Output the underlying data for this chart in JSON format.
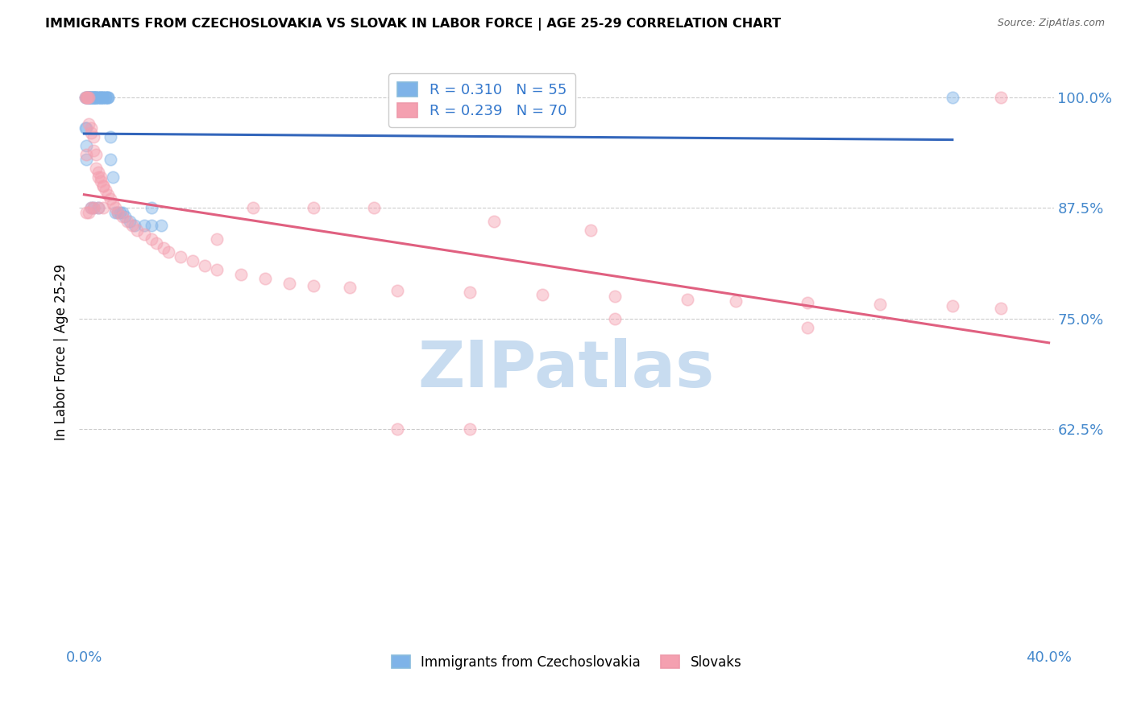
{
  "title": "IMMIGRANTS FROM CZECHOSLOVAKIA VS SLOVAK IN LABOR FORCE | AGE 25-29 CORRELATION CHART",
  "source": "Source: ZipAtlas.com",
  "ylabel": "In Labor Force | Age 25-29",
  "xlim": [
    -0.002,
    0.402
  ],
  "ylim": [
    0.38,
    1.045
  ],
  "xticks": [
    0.0,
    0.4
  ],
  "xticklabels": [
    "0.0%",
    "40.0%"
  ],
  "yticks": [
    0.625,
    0.75,
    0.875,
    1.0
  ],
  "yticklabels": [
    "62.5%",
    "75.0%",
    "87.5%",
    "100.0%"
  ],
  "legend_label1": "Immigrants from Czechoslovakia",
  "legend_label2": "Slovaks",
  "R1": 0.31,
  "N1": 55,
  "R2": 0.239,
  "N2": 70,
  "blue_color": "#7EB3E8",
  "pink_color": "#F4A0B0",
  "blue_line_color": "#3366BB",
  "pink_line_color": "#E06080",
  "watermark_color": "#C8DCF0",
  "background_color": "#FFFFFF",
  "blue_x": [
    0.0005,
    0.001,
    0.0012,
    0.0015,
    0.0018,
    0.002,
    0.002,
    0.0022,
    0.0025,
    0.003,
    0.003,
    0.0032,
    0.0035,
    0.004,
    0.004,
    0.0042,
    0.0045,
    0.005,
    0.005,
    0.005,
    0.006,
    0.006,
    0.0065,
    0.007,
    0.007,
    0.0075,
    0.008,
    0.008,
    0.009,
    0.009,
    0.0095,
    0.01,
    0.01,
    0.011,
    0.011,
    0.012,
    0.013,
    0.014,
    0.015,
    0.016,
    0.017,
    0.019,
    0.021,
    0.025,
    0.028,
    0.032,
    0.001,
    0.001,
    0.0008,
    0.0006,
    0.003,
    0.004,
    0.006,
    0.028,
    0.36
  ],
  "blue_y": [
    1.0,
    1.0,
    1.0,
    1.0,
    1.0,
    1.0,
    1.0,
    1.0,
    1.0,
    1.0,
    1.0,
    1.0,
    1.0,
    1.0,
    1.0,
    1.0,
    1.0,
    1.0,
    1.0,
    1.0,
    1.0,
    1.0,
    1.0,
    1.0,
    1.0,
    1.0,
    1.0,
    1.0,
    1.0,
    1.0,
    1.0,
    1.0,
    1.0,
    0.955,
    0.93,
    0.91,
    0.87,
    0.87,
    0.87,
    0.87,
    0.865,
    0.86,
    0.855,
    0.855,
    0.855,
    0.855,
    0.93,
    0.945,
    0.965,
    0.965,
    0.875,
    0.875,
    0.875,
    0.875,
    1.0
  ],
  "pink_x": [
    0.0005,
    0.001,
    0.0012,
    0.0015,
    0.002,
    0.002,
    0.003,
    0.003,
    0.004,
    0.004,
    0.005,
    0.005,
    0.006,
    0.006,
    0.007,
    0.007,
    0.008,
    0.008,
    0.009,
    0.01,
    0.011,
    0.012,
    0.013,
    0.014,
    0.016,
    0.018,
    0.02,
    0.022,
    0.025,
    0.028,
    0.03,
    0.033,
    0.035,
    0.04,
    0.045,
    0.05,
    0.055,
    0.065,
    0.075,
    0.085,
    0.095,
    0.11,
    0.13,
    0.16,
    0.19,
    0.22,
    0.25,
    0.27,
    0.3,
    0.33,
    0.36,
    0.38,
    0.001,
    0.001,
    0.002,
    0.003,
    0.004,
    0.006,
    0.008,
    0.17,
    0.21,
    0.38,
    0.22,
    0.3,
    0.16,
    0.13,
    0.055,
    0.07,
    0.095,
    0.12
  ],
  "pink_y": [
    1.0,
    1.0,
    1.0,
    1.0,
    1.0,
    0.97,
    0.965,
    0.96,
    0.955,
    0.94,
    0.935,
    0.92,
    0.915,
    0.91,
    0.91,
    0.905,
    0.9,
    0.9,
    0.895,
    0.89,
    0.885,
    0.88,
    0.875,
    0.87,
    0.865,
    0.86,
    0.855,
    0.85,
    0.845,
    0.84,
    0.835,
    0.83,
    0.825,
    0.82,
    0.815,
    0.81,
    0.805,
    0.8,
    0.795,
    0.79,
    0.787,
    0.785,
    0.782,
    0.78,
    0.777,
    0.775,
    0.772,
    0.77,
    0.768,
    0.766,
    0.764,
    0.762,
    0.935,
    0.87,
    0.87,
    0.875,
    0.875,
    0.875,
    0.875,
    0.86,
    0.85,
    1.0,
    0.75,
    0.74,
    0.625,
    0.625,
    0.84,
    0.875,
    0.875,
    0.875
  ]
}
